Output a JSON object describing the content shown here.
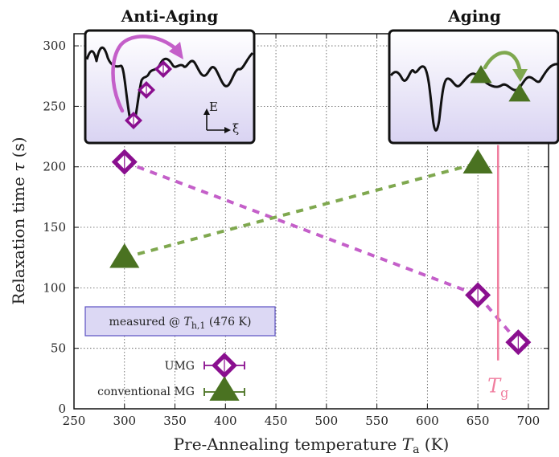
{
  "chart_data": {
    "type": "scatter",
    "xlabel_text": "Pre-Annealing temperature ",
    "xlabel_var": "T",
    "xlabel_sub": "a",
    "xlabel_unit": " (K)",
    "ylabel_text": "Relaxation time ",
    "ylabel_var": "τ",
    "ylabel_unit": " (s)",
    "xlim": [
      250,
      720
    ],
    "ylim": [
      0,
      310
    ],
    "x_ticks": [
      250,
      300,
      350,
      400,
      450,
      500,
      550,
      600,
      650,
      700
    ],
    "y_ticks": [
      0,
      50,
      100,
      150,
      200,
      250,
      300
    ],
    "grid": true,
    "series": [
      {
        "name": "UMG",
        "marker": "diamond",
        "color": "#8a0f8f",
        "line_color": "#c45fc9",
        "points": [
          {
            "x": 300,
            "y": 204
          },
          {
            "x": 650,
            "y": 94
          },
          {
            "x": 690,
            "y": 55
          }
        ]
      },
      {
        "name": "conventional MG",
        "marker": "triangle",
        "color": "#4a7221",
        "line_color": "#7fa84f",
        "points": [
          {
            "x": 300,
            "y": 125
          },
          {
            "x": 650,
            "y": 203
          }
        ]
      }
    ],
    "vline": {
      "x": 670,
      "y_top": 218,
      "y_bottom": 40,
      "label_var": "T",
      "label_sub": "g",
      "color": "#f07e9f"
    },
    "annotation_box": {
      "text_prefix": "measured @ ",
      "var": "T",
      "sub": "h,1",
      "text_suffix": " (476 K)"
    },
    "legend_placement": "bottom-left",
    "insets": [
      {
        "title": "Anti-Aging",
        "axis_e": "E",
        "axis_xi": "ξ"
      },
      {
        "title": "Aging"
      }
    ]
  },
  "colors": {
    "umg": "#8a0f8f",
    "umg_line": "#c45fc9",
    "mg": "#4a7221",
    "mg_line": "#7fa84f",
    "tg": "#f07e9f",
    "inset_fill_top": "#ffffff",
    "inset_fill_bottom": "#d9d3f2",
    "annot_fill": "#dcd8f4",
    "annot_stroke": "#5b4fc2"
  }
}
